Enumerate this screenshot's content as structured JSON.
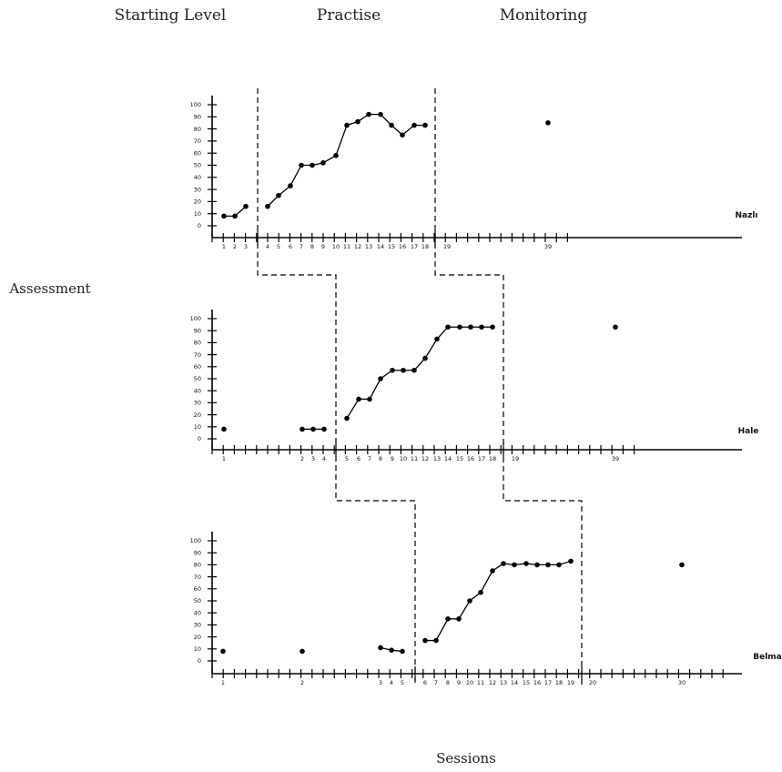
{
  "phase_labels": [
    "Starting Level",
    "Practise",
    "Monitoring"
  ],
  "y_title": "Assessment",
  "x_title": "Sessions",
  "chart_data": [
    {
      "type": "line",
      "name": "Nazlı",
      "ylim": [
        0,
        100
      ],
      "yticks": [
        0,
        10,
        20,
        30,
        40,
        50,
        60,
        70,
        80,
        90,
        100
      ],
      "phase_change_after_session": [
        3,
        18
      ],
      "x_tick_labels": [
        "1",
        "2",
        "3",
        "4",
        "5",
        "6",
        "7",
        "8",
        "9",
        "10",
        "11",
        "12",
        "13",
        "14",
        "15",
        "16",
        "17",
        "18",
        "19",
        "39"
      ],
      "segments": [
        {
          "phase": "Starting Level",
          "points": [
            {
              "session": 1,
              "score": 8
            },
            {
              "session": 2,
              "score": 8
            },
            {
              "session": 3,
              "score": 16
            }
          ]
        },
        {
          "phase": "Practise",
          "points": [
            {
              "session": 4,
              "score": 16
            },
            {
              "session": 5,
              "score": 25
            },
            {
              "session": 6,
              "score": 33
            },
            {
              "session": 7,
              "score": 50
            },
            {
              "session": 8,
              "score": 50
            },
            {
              "session": 9,
              "score": 52
            },
            {
              "session": 10,
              "score": 58
            },
            {
              "session": 11,
              "score": 83
            },
            {
              "session": 12,
              "score": 86
            },
            {
              "session": 13,
              "score": 92
            },
            {
              "session": 14,
              "score": 92
            },
            {
              "session": 15,
              "score": 83
            },
            {
              "session": 16,
              "score": 75
            },
            {
              "session": 17,
              "score": 83
            },
            {
              "session": 18,
              "score": 83
            }
          ]
        },
        {
          "phase": "Monitoring",
          "points": [
            {
              "session": 39,
              "score": 85
            }
          ]
        }
      ]
    },
    {
      "type": "line",
      "name": "Hale",
      "ylim": [
        0,
        100
      ],
      "yticks": [
        0,
        10,
        20,
        30,
        40,
        50,
        60,
        70,
        80,
        90,
        100
      ],
      "phase_change_after_session": [
        4,
        18
      ],
      "x_tick_labels": [
        "1",
        "2",
        "3",
        "4",
        "5",
        "6",
        "7",
        "8",
        "9",
        "10",
        "11",
        "12",
        "13",
        "14",
        "15",
        "16",
        "17",
        "18",
        "19",
        "39"
      ],
      "segments": [
        {
          "phase": "Starting Level",
          "points": [
            {
              "session": 1,
              "score": 8
            }
          ]
        },
        {
          "phase": "Starting Level",
          "points": [
            {
              "session": 2,
              "score": 8
            },
            {
              "session": 3,
              "score": 8
            },
            {
              "session": 4,
              "score": 8
            }
          ]
        },
        {
          "phase": "Practise",
          "points": [
            {
              "session": 5,
              "score": 17
            },
            {
              "session": 6,
              "score": 33
            },
            {
              "session": 7,
              "score": 33
            },
            {
              "session": 8,
              "score": 50
            },
            {
              "session": 9,
              "score": 57
            },
            {
              "session": 10,
              "score": 57
            },
            {
              "session": 11,
              "score": 57
            },
            {
              "session": 12,
              "score": 67
            },
            {
              "session": 13,
              "score": 83
            },
            {
              "session": 14,
              "score": 93
            },
            {
              "session": 15,
              "score": 93
            },
            {
              "session": 16,
              "score": 93
            },
            {
              "session": 17,
              "score": 93
            },
            {
              "session": 18,
              "score": 93
            }
          ]
        },
        {
          "phase": "Monitoring",
          "points": [
            {
              "session": 39,
              "score": 93
            }
          ]
        }
      ]
    },
    {
      "type": "line",
      "name": "Belma",
      "ylim": [
        0,
        100
      ],
      "yticks": [
        0,
        10,
        20,
        30,
        40,
        50,
        60,
        70,
        80,
        90,
        100
      ],
      "phase_change_after_session": [
        5,
        19
      ],
      "x_tick_labels": [
        "1",
        "2",
        "3",
        "4",
        "5",
        "6",
        "7",
        "8",
        "9",
        "10",
        "11",
        "12",
        "13",
        "14",
        "15",
        "16",
        "17",
        "18",
        "19",
        "20",
        "30"
      ],
      "segments": [
        {
          "phase": "Starting Level",
          "points": [
            {
              "session": 1,
              "score": 8
            }
          ]
        },
        {
          "phase": "Starting Level",
          "points": [
            {
              "session": 2,
              "score": 8
            }
          ]
        },
        {
          "phase": "Starting Level",
          "points": [
            {
              "session": 3,
              "score": 11
            },
            {
              "session": 4,
              "score": 9
            },
            {
              "session": 5,
              "score": 8
            }
          ]
        },
        {
          "phase": "Practise",
          "points": [
            {
              "session": 6,
              "score": 17
            },
            {
              "session": 7,
              "score": 17
            },
            {
              "session": 8,
              "score": 35
            },
            {
              "session": 9,
              "score": 35
            },
            {
              "session": 10,
              "score": 50
            },
            {
              "session": 11,
              "score": 57
            },
            {
              "session": 12,
              "score": 75
            },
            {
              "session": 13,
              "score": 81
            },
            {
              "session": 14,
              "score": 80
            },
            {
              "session": 15,
              "score": 81
            },
            {
              "session": 16,
              "score": 80
            },
            {
              "session": 17,
              "score": 80
            },
            {
              "session": 18,
              "score": 80
            },
            {
              "session": 19,
              "score": 83
            }
          ]
        },
        {
          "phase": "Monitoring",
          "points": [
            {
              "session": 30,
              "score": 80
            }
          ]
        }
      ]
    }
  ]
}
